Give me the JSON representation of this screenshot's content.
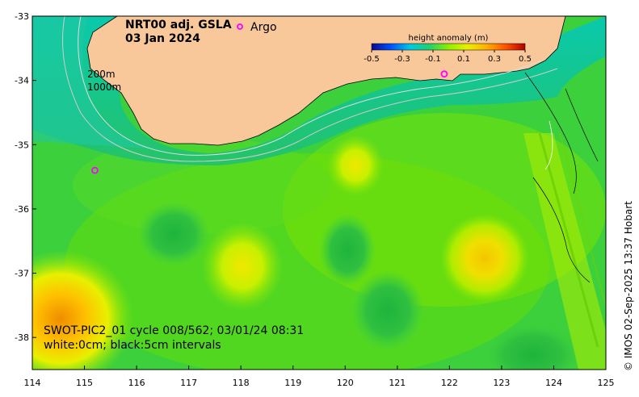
{
  "title": {
    "product": "NRT00 adj. GSLA",
    "date": "03 Jan 2024"
  },
  "legend": {
    "argo_symbol": "o",
    "argo_label": "Argo",
    "argo_color": "#ff00ff"
  },
  "isobaths": {
    "shallow": "200m",
    "deep": "1000m"
  },
  "colorbar": {
    "title": "height anomaly (m)",
    "ticks": [
      "-0.5",
      "-0.3",
      "-0.1",
      "0.1",
      "0.3",
      "0.5"
    ],
    "colors": [
      "#0a0a8c",
      "#0050ff",
      "#00c8e0",
      "#20d070",
      "#8cf000",
      "#e8f000",
      "#ffb000",
      "#ff5000",
      "#b00000"
    ]
  },
  "swot": {
    "pass_info": "SWOT-PIC2_01 cycle 008/562; 03/01/24 08:31",
    "contour_info": "white:0cm; black:5cm intervals"
  },
  "axes": {
    "x_ticks": [
      "114",
      "115",
      "116",
      "117",
      "118",
      "119",
      "120",
      "121",
      "122",
      "123",
      "124",
      "125"
    ],
    "y_ticks": [
      "-33",
      "-34",
      "-35",
      "-36",
      "-37",
      "-38"
    ]
  },
  "credit": "© IMOS 02-Sep-2025 13:37 Hobart",
  "colors": {
    "land": "#f8c89a",
    "ocean_base": "#3cd03c",
    "warm": "#f08c00"
  },
  "argo_floats": [
    {
      "lon": 115.2,
      "lat": -35.4
    },
    {
      "lon": 121.9,
      "lat": -33.9
    }
  ]
}
